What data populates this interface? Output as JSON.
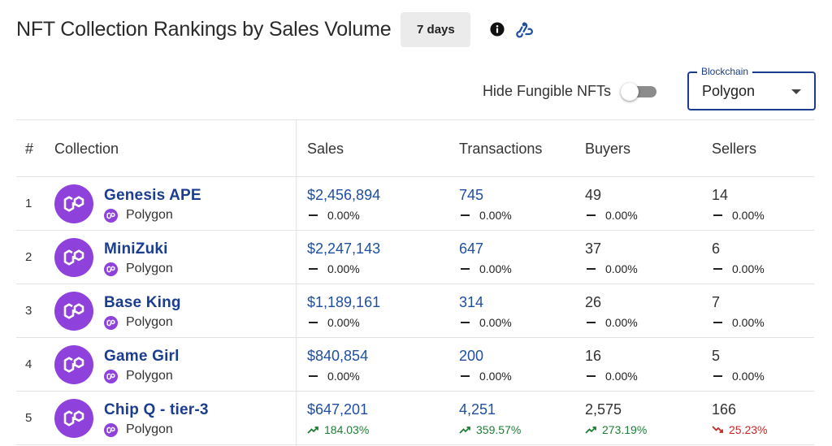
{
  "header": {
    "title": "NFT Collection Rankings by Sales Volume",
    "period_label": "7 days"
  },
  "filters": {
    "hide_fungible_label": "Hide Fungible NFTs",
    "hide_fungible_on": false,
    "blockchain_legend": "Blockchain",
    "blockchain_value": "Polygon"
  },
  "table": {
    "headers": {
      "rank": "#",
      "collection": "Collection",
      "sales": "Sales",
      "transactions": "Transactions",
      "buyers": "Buyers",
      "sellers": "Sellers"
    },
    "rows": [
      {
        "rank": "1",
        "name": "Genesis APE",
        "chain": "Polygon",
        "sales": "$2,456,894",
        "sales_change": "0.00%",
        "transactions": "745",
        "transactions_change": "0.00%",
        "buyers": "49",
        "buyers_change": "0.00%",
        "sellers": "14",
        "sellers_change": "0.00%"
      },
      {
        "rank": "2",
        "name": "MiniZuki",
        "chain": "Polygon",
        "sales": "$2,247,143",
        "sales_change": "0.00%",
        "transactions": "647",
        "transactions_change": "0.00%",
        "buyers": "37",
        "buyers_change": "0.00%",
        "sellers": "6",
        "sellers_change": "0.00%"
      },
      {
        "rank": "3",
        "name": "Base King",
        "chain": "Polygon",
        "sales": "$1,189,161",
        "sales_change": "0.00%",
        "transactions": "314",
        "transactions_change": "0.00%",
        "buyers": "26",
        "buyers_change": "0.00%",
        "sellers": "7",
        "sellers_change": "0.00%"
      },
      {
        "rank": "4",
        "name": "Game Girl",
        "chain": "Polygon",
        "sales": "$840,854",
        "sales_change": "0.00%",
        "transactions": "200",
        "transactions_change": "0.00%",
        "buyers": "16",
        "buyers_change": "0.00%",
        "sellers": "5",
        "sellers_change": "0.00%"
      },
      {
        "rank": "5",
        "name": "Chip Q - tier-3",
        "chain": "Polygon",
        "sales": "$647,201",
        "sales_change": "184.03%",
        "transactions": "4,251",
        "transactions_change": "359.57%",
        "buyers": "2,575",
        "buyers_change": "273.19%",
        "sellers": "166",
        "sellers_change": "25.23%"
      }
    ]
  },
  "colors": {
    "polygon_purple": "#8f41db",
    "link_blue": "#1f4fa0",
    "up_green": "#1e7e34",
    "down_red": "#c62828"
  },
  "icons": {
    "info": "info-icon",
    "webhook": "webhook-icon",
    "collection_avatar": "polygon-icon",
    "chain": "polygon-icon",
    "trend_up": "trending-up-icon",
    "trend_down": "trending-down-icon",
    "neutral": "dash-icon"
  }
}
